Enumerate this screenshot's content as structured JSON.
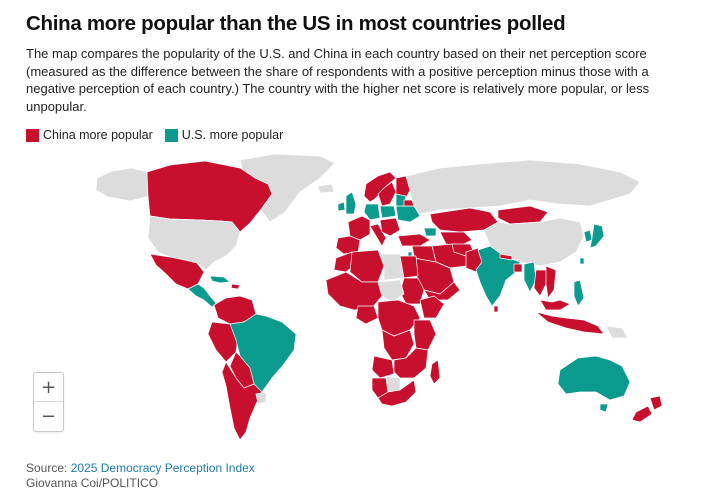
{
  "title": "China more popular than the US in most countries polled",
  "subtitle": "The map compares the popularity of the U.S. and China in each country based on their net perception score (measured as the difference between the share of respondents with a positive perception minus those with a negative perception of each country.) The country with the higher net score is relatively more popular, or less unpopular.",
  "legend": [
    {
      "label": "China more popular",
      "color": "#c8102e"
    },
    {
      "label": "U.S. more popular",
      "color": "#0b9a8e"
    }
  ],
  "colors": {
    "china": "#c8102e",
    "us": "#0b9a8e",
    "no_data": "#dcdcdc",
    "border": "#ffffff"
  },
  "zoom": {
    "in_label": "+",
    "out_label": "−"
  },
  "source": {
    "prefix": "Source: ",
    "link_text": "2025 Democracy Perception Index"
  },
  "credit": "Giovanna Coi/POLITICO",
  "icons": {
    "zoom_in": "plus-icon",
    "zoom_out": "minus-icon"
  }
}
